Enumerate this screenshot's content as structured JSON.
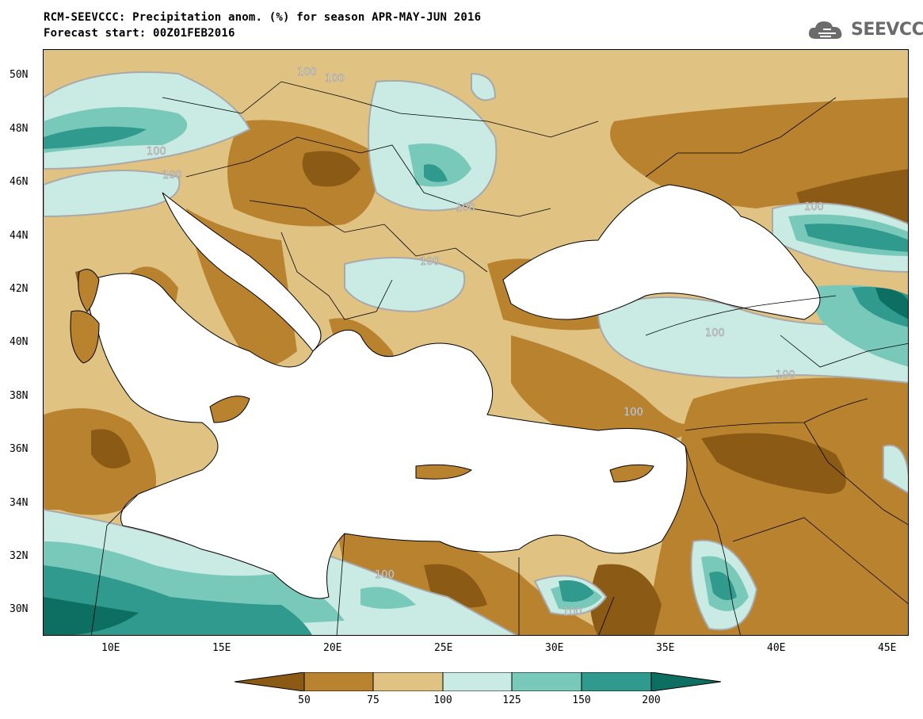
{
  "title_line1": "RCM-SEEVCCC: Precipitation anom. (%) for season APR-MAY-JUN 2016",
  "title_line2": "Forecast start: 00Z01FEB2016",
  "logo_text": "SEEVCCC",
  "map": {
    "lon_range": [
      7,
      46
    ],
    "lat_range": [
      29,
      51
    ],
    "x_ticks": [
      "10E",
      "15E",
      "20E",
      "25E",
      "30E",
      "35E",
      "40E",
      "45E"
    ],
    "y_ticks": [
      "50N",
      "48N",
      "46N",
      "44N",
      "42N",
      "40N",
      "38N",
      "36N",
      "34N",
      "32N",
      "30N"
    ],
    "contour_labels": [
      "100",
      "100",
      "100",
      "100",
      "100",
      "100",
      "100",
      "100",
      "100",
      "100",
      "100",
      "100"
    ]
  },
  "colorbar": {
    "labels": [
      "50",
      "75",
      "100",
      "125",
      "150",
      "200"
    ],
    "colors": [
      "#8b5a14",
      "#b9822f",
      "#e0c283",
      "#c9ebe4",
      "#79c9bb",
      "#2f9a8d",
      "#0d6f62"
    ]
  }
}
